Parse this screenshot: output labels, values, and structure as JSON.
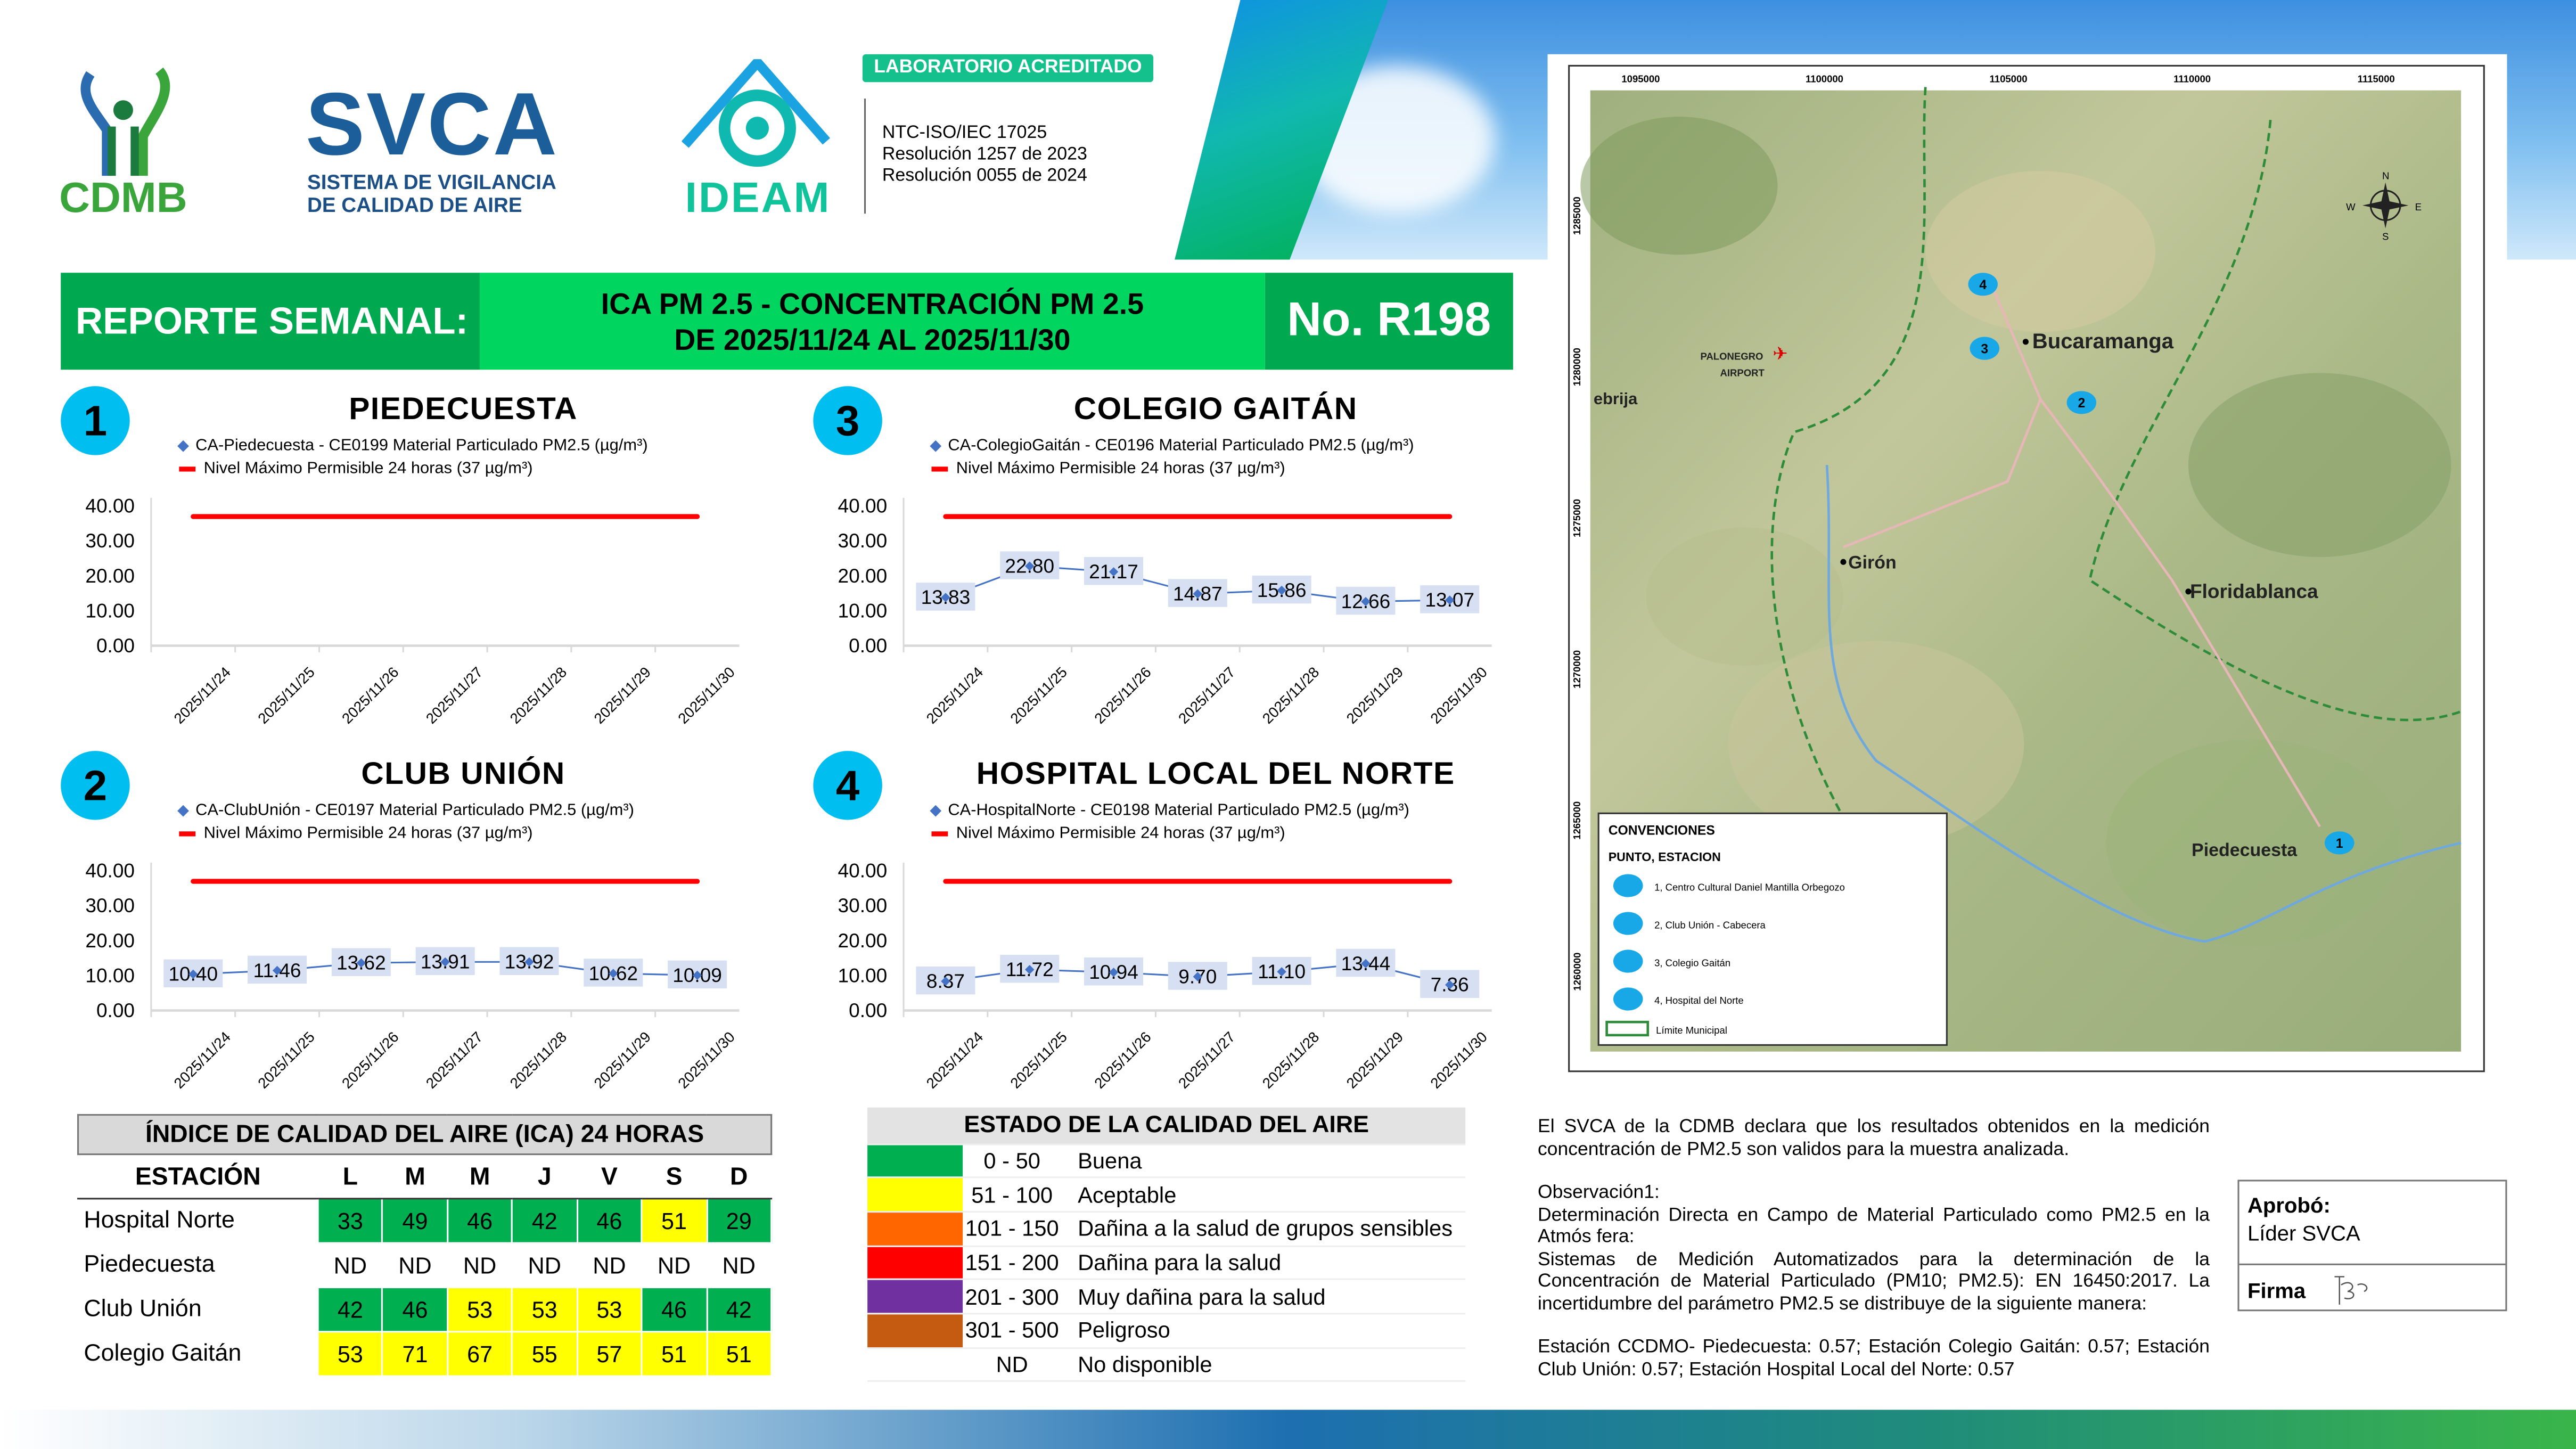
{
  "header": {
    "logos": {
      "cdmb": "CDMB",
      "svca": "SVCA",
      "svca_sub_1": "SISTEMA DE VIGILANCIA",
      "svca_sub_2": "DE CALIDAD DE AIRE",
      "ideam": "IDEAM"
    },
    "lab_badge": "LABORATORIO ACREDITADO",
    "norms": [
      "NTC-ISO/IEC 17025",
      "Resolución 1257 de 2023",
      "Resolución 0055 de 2024"
    ],
    "report_label": "REPORTE SEMANAL:",
    "report_title_1": "ICA PM 2.5 - CONCENTRACIÓN PM 2.5",
    "report_title_2": "DE 2025/11/24 AL 2025/11/30",
    "report_number": "No. R198"
  },
  "colors": {
    "dark_green": "#00a94f",
    "bright_green": "#00d65f",
    "badge": "#00bff0",
    "series": "#4472c4",
    "limit": "#ff0000",
    "label_bg": "#d6e0f2"
  },
  "chart_data": [
    {
      "type": "line",
      "number": "1",
      "title": "PIEDECUESTA",
      "series_name": "CA-Piedecuesta - CE0199 Material Particulado PM2.5 (µg/m³)",
      "limit_name": "Nivel Máximo Permisible 24 horas (37 µg/m³)",
      "limit": 37,
      "categories": [
        "2025/11/24",
        "2025/11/25",
        "2025/11/26",
        "2025/11/27",
        "2025/11/28",
        "2025/11/29",
        "2025/11/30"
      ],
      "values": [
        null,
        null,
        null,
        null,
        null,
        null,
        null
      ],
      "labels": [],
      "yticks": [
        "40.00",
        "30.00",
        "20.00",
        "10.00",
        "0.00"
      ],
      "ylim": [
        0,
        40
      ]
    },
    {
      "type": "line",
      "number": "3",
      "title": "COLEGIO GAITÁN",
      "series_name": "CA-ColegioGaitán  - CE0196 Material Particulado PM2.5 (µg/m³)",
      "limit_name": "Nivel Máximo Permisible 24 horas (37 µg/m³)",
      "limit": 37,
      "categories": [
        "2025/11/24",
        "2025/11/25",
        "2025/11/26",
        "2025/11/27",
        "2025/11/28",
        "2025/11/29",
        "2025/11/30"
      ],
      "values": [
        13.83,
        22.8,
        21.17,
        14.87,
        15.86,
        12.66,
        13.07
      ],
      "labels": [
        "13.83",
        "22.80",
        "21.17",
        "14.87",
        "15.86",
        "12.66",
        "13.07"
      ],
      "yticks": [
        "40.00",
        "30.00",
        "20.00",
        "10.00",
        "0.00"
      ],
      "ylim": [
        0,
        40
      ]
    },
    {
      "type": "line",
      "number": "2",
      "title": "CLUB UNIÓN",
      "series_name": "CA-ClubUnión - CE0197 Material Particulado PM2.5 (µg/m³)",
      "limit_name": "Nivel Máximo Permisible 24 horas (37 µg/m³)",
      "limit": 37,
      "categories": [
        "2025/11/24",
        "2025/11/25",
        "2025/11/26",
        "2025/11/27",
        "2025/11/28",
        "2025/11/29",
        "2025/11/30"
      ],
      "values": [
        10.4,
        11.46,
        13.62,
        13.91,
        13.92,
        10.62,
        10.09
      ],
      "labels": [
        "10.40",
        "11.46",
        "13.62",
        "13.91",
        "13.92",
        "10.62",
        "10.09"
      ],
      "yticks": [
        "40.00",
        "30.00",
        "20.00",
        "10.00",
        "0.00"
      ],
      "ylim": [
        0,
        40
      ]
    },
    {
      "type": "line",
      "number": "4",
      "title": "HOSPITAL LOCAL DEL NORTE",
      "series_name": "CA-HospitalNorte - CE0198 Material Particulado PM2.5 (µg/m³)",
      "limit_name": "Nivel Máximo Permisible 24 horas (37 µg/m³)",
      "limit": 37,
      "categories": [
        "2025/11/24",
        "2025/11/25",
        "2025/11/26",
        "2025/11/27",
        "2025/11/28",
        "2025/11/29",
        "2025/11/30"
      ],
      "values": [
        8.37,
        11.72,
        10.94,
        9.7,
        11.1,
        13.44,
        7.36
      ],
      "labels": [
        "8.37",
        "11.72",
        "10.94",
        "9.70",
        "11.10",
        "13.44",
        "7.36"
      ],
      "yticks": [
        "40.00",
        "30.00",
        "20.00",
        "10.00",
        "0.00"
      ],
      "ylim": [
        0,
        40
      ]
    }
  ],
  "ica_table": {
    "title": "ÍNDICE DE CALIDAD DEL AIRE (ICA) 24 HORAS",
    "station_header": "ESTACIÓN",
    "days": [
      "L",
      "M",
      "M",
      "J",
      "V",
      "S",
      "D"
    ],
    "rows": [
      {
        "station": "Hospital Norte",
        "values": [
          "33",
          "49",
          "46",
          "42",
          "46",
          "51",
          "29"
        ]
      },
      {
        "station": "Piedecuesta",
        "values": [
          "ND",
          "ND",
          "ND",
          "ND",
          "ND",
          "ND",
          "ND"
        ]
      },
      {
        "station": "Club Unión",
        "values": [
          "42",
          "46",
          "53",
          "53",
          "53",
          "46",
          "42"
        ]
      },
      {
        "station": "Colegio Gaitán",
        "values": [
          "53",
          "71",
          "67",
          "55",
          "57",
          "51",
          "51"
        ]
      }
    ]
  },
  "quality_table": {
    "title": "ESTADO DE LA CALIDAD DEL AIRE",
    "rows": [
      {
        "range": "0 - 50",
        "label": "Buena",
        "color": "#00b050",
        "max": 50
      },
      {
        "range": "51 - 100",
        "label": "Aceptable",
        "color": "#ffff00",
        "max": 100
      },
      {
        "range": "101 - 150",
        "label": "Dañina a la salud de grupos sensibles",
        "color": "#ff6600",
        "max": 150
      },
      {
        "range": "151 - 200",
        "label": "Dañina para la salud",
        "color": "#ff0000",
        "max": 200
      },
      {
        "range": "201 - 300",
        "label": "Muy dañina para la salud",
        "color": "#7030a0",
        "max": 300
      },
      {
        "range": "301 - 500",
        "label": "Peligroso",
        "color": "#c55a11",
        "max": 500
      },
      {
        "range": "ND",
        "label": "No disponible",
        "color": "#ffffff"
      }
    ]
  },
  "map": {
    "x_ticks": [
      "1095000",
      "1100000",
      "1105000",
      "1110000",
      "1115000"
    ],
    "y_ticks": [
      "1285000",
      "1280000",
      "1275000",
      "1270000",
      "1265000",
      "1260000"
    ],
    "places": {
      "bucaramanga": "Bucaramanga",
      "giron": "Girón",
      "floridablanca": "Floridablanca",
      "piedecuesta": "Piedecuesta",
      "lebrija": "ebrija",
      "airport_1": "PALONEGRO",
      "airport_2": "AIRPORT"
    },
    "compass": {
      "n": "N",
      "s": "S",
      "e": "E",
      "w": "W"
    },
    "legend": {
      "title": "CONVENCIONES",
      "subtitle": "PUNTO, ESTACION",
      "items": [
        "1, Centro Cultural Daniel Mantilla Orbegozo",
        "2, Club Unión - Cabecera",
        "3, Colegio Gaitán",
        "4, Hospital del Norte"
      ],
      "boundary": "Límite Municipal"
    },
    "markers": [
      "1",
      "2",
      "3",
      "4"
    ]
  },
  "notes": {
    "declaration": "El SVCA  de la CDMB declara que los resultados obtenidos en la medición concentración de PM2.5 son validos para la muestra  analizada.",
    "obs_title": "Observación1:",
    "obs_1": "Determinación Directa en Campo de Material Particulado como PM2.5 en la Atmós fera:",
    "obs_2": "Sistemas de Medición Automatizados para la  determinación de la Concentración de Material Particulado (PM10;  PM2.5): EN 16450:2017. La incertidumbre del parámetro PM2.5 se distribuye de la siguiente manera:",
    "uncertainty": "Estación  CCDMO-  Piedecuesta:  0.57;  Estación  Colegio  Gaitán:  0.57;  Estación Club Unión: 0.57; Estación Hospital Local del Norte: 0.57"
  },
  "approval": {
    "label": "Aprobó:",
    "role": "Líder SVCA",
    "signature_label": "Firma"
  }
}
